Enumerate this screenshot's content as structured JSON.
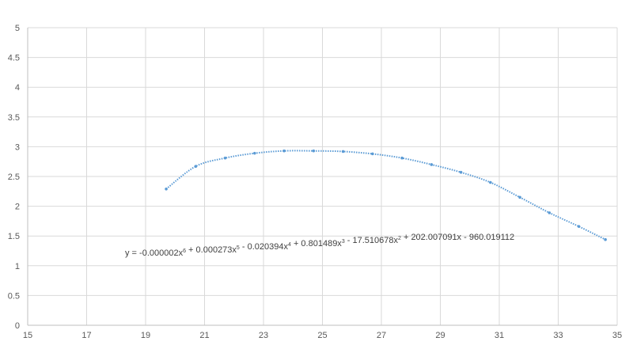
{
  "chart_data": {
    "type": "scatter",
    "title": "",
    "xlabel": "",
    "ylabel": "",
    "xlim": [
      15,
      35
    ],
    "ylim": [
      0,
      5
    ],
    "x_ticks": [
      "15",
      "17",
      "19",
      "21",
      "23",
      "25",
      "27",
      "29",
      "31",
      "33",
      "35"
    ],
    "y_ticks": [
      "0",
      "0.5",
      "1",
      "1.5",
      "2",
      "2.5",
      "3",
      "3.5",
      "4",
      "4.5",
      "5"
    ],
    "grid": true,
    "legend": "none",
    "series": [
      {
        "x": [
          19.7,
          20.7,
          21.7,
          22.7,
          23.7,
          24.7,
          25.7,
          26.7,
          27.7,
          28.7,
          29.7,
          30.7,
          31.7,
          32.7,
          33.7,
          34.6
        ],
        "y": [
          2.29,
          2.67,
          2.81,
          2.89,
          2.93,
          2.93,
          2.92,
          2.88,
          2.81,
          2.7,
          2.57,
          2.4,
          2.15,
          1.89,
          1.66,
          1.44
        ],
        "color": "#5b9bd5"
      }
    ],
    "trendline": {
      "type": "polynomial",
      "order": 6,
      "style": "dotted",
      "color": "#5b9bd5",
      "equation_parts": [
        {
          "t": "y = -0.000002x",
          "sup": "6"
        },
        {
          "t": " + 0.000273x",
          "sup": "5"
        },
        {
          "t": " - 0.020394x",
          "sup": "4"
        },
        {
          "t": " + 0.801489x",
          "sup": "3"
        },
        {
          "t": " - 17.510678x",
          "sup": "2"
        },
        {
          "t": " + 202.007091x - 960.019112",
          "sup": ""
        }
      ]
    }
  }
}
